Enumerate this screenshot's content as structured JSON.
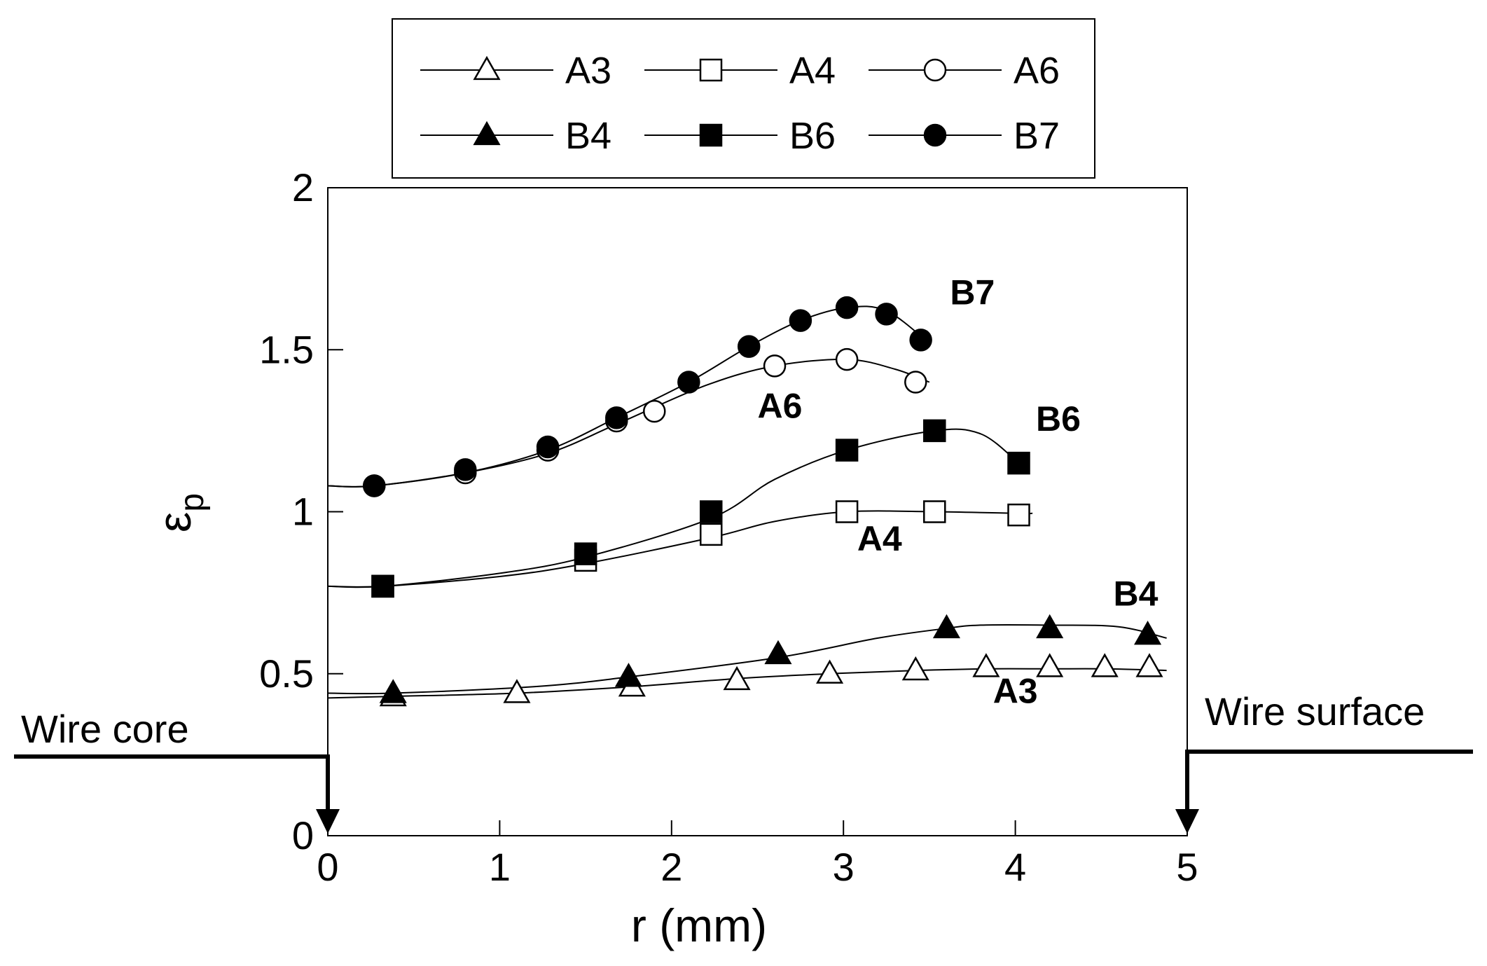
{
  "chart_data": {
    "type": "line",
    "title": "",
    "xlabel": "r (mm)",
    "ylabel_symbol": "ε",
    "ylabel_subscript": "p",
    "xlim": [
      0,
      5
    ],
    "ylim": [
      0,
      2
    ],
    "xticks": [
      0,
      1,
      2,
      3,
      4,
      5
    ],
    "yticks": [
      0,
      0.5,
      1,
      1.5,
      2
    ],
    "ytick_labels": [
      "0",
      "0.5",
      "1",
      "1.5",
      "2"
    ],
    "legend_position": "top",
    "grid": false,
    "series": [
      {
        "name": "A3",
        "marker": "triangle",
        "filled": false,
        "x": [
          0.38,
          1.1,
          1.77,
          2.38,
          2.92,
          3.42,
          3.83,
          4.2,
          4.52,
          4.78
        ],
        "y": [
          0.43,
          0.44,
          0.46,
          0.48,
          0.5,
          0.51,
          0.52,
          0.52,
          0.52,
          0.52
        ],
        "curve_x": [
          0,
          0.38,
          1.1,
          1.77,
          2.38,
          2.92,
          3.42,
          3.83,
          4.2,
          4.52,
          4.88
        ],
        "curve_y": [
          0.425,
          0.43,
          0.44,
          0.46,
          0.485,
          0.5,
          0.51,
          0.515,
          0.515,
          0.515,
          0.51
        ]
      },
      {
        "name": "A4",
        "marker": "square",
        "filled": false,
        "x": [
          0.32,
          1.5,
          2.23,
          3.02,
          3.53,
          4.02
        ],
        "y": [
          0.77,
          0.85,
          0.93,
          1.0,
          1.0,
          0.99
        ],
        "curve_x": [
          0,
          0.32,
          1.0,
          1.5,
          2.23,
          2.6,
          3.02,
          3.53,
          4.02,
          4.1
        ],
        "curve_y": [
          0.77,
          0.77,
          0.8,
          0.84,
          0.92,
          0.97,
          1.0,
          1.0,
          0.995,
          0.995
        ]
      },
      {
        "name": "A6",
        "marker": "circle",
        "filled": false,
        "x": [
          0.27,
          0.8,
          1.28,
          1.68,
          1.9,
          2.6,
          3.02,
          3.42
        ],
        "y": [
          1.08,
          1.12,
          1.19,
          1.28,
          1.31,
          1.45,
          1.47,
          1.4
        ],
        "curve_x": [
          0,
          0.27,
          0.8,
          1.28,
          1.68,
          2.2,
          2.6,
          3.02,
          3.3,
          3.5
        ],
        "curve_y": [
          1.08,
          1.08,
          1.12,
          1.18,
          1.27,
          1.39,
          1.45,
          1.47,
          1.44,
          1.4
        ]
      },
      {
        "name": "B4",
        "marker": "triangle",
        "filled": true,
        "x": [
          0.38,
          1.75,
          2.62,
          3.6,
          4.2,
          4.77
        ],
        "y": [
          0.44,
          0.49,
          0.56,
          0.64,
          0.64,
          0.62
        ],
        "curve_x": [
          0,
          0.38,
          1.2,
          1.75,
          2.62,
          3.2,
          3.6,
          3.8,
          4.2,
          4.6,
          4.88
        ],
        "curve_y": [
          0.44,
          0.44,
          0.46,
          0.49,
          0.55,
          0.61,
          0.64,
          0.65,
          0.65,
          0.645,
          0.61
        ]
      },
      {
        "name": "B6",
        "marker": "square",
        "filled": true,
        "x": [
          0.32,
          1.5,
          2.23,
          3.02,
          3.53,
          4.02
        ],
        "y": [
          0.77,
          0.87,
          1.0,
          1.19,
          1.25,
          1.15
        ],
        "curve_x": [
          0,
          0.32,
          1.0,
          1.5,
          2.23,
          2.6,
          3.02,
          3.53,
          3.8,
          4.02
        ],
        "curve_y": [
          0.77,
          0.77,
          0.81,
          0.86,
          0.98,
          1.1,
          1.19,
          1.25,
          1.24,
          1.15
        ]
      },
      {
        "name": "B7",
        "marker": "circle",
        "filled": true,
        "x": [
          0.27,
          0.8,
          1.28,
          1.68,
          2.1,
          2.45,
          2.75,
          3.02,
          3.25,
          3.45
        ],
        "y": [
          1.08,
          1.13,
          1.2,
          1.29,
          1.4,
          1.51,
          1.59,
          1.63,
          1.61,
          1.53
        ],
        "curve_x": [
          0,
          0.27,
          0.8,
          1.28,
          1.68,
          2.1,
          2.45,
          2.75,
          3.02,
          3.25,
          3.5
        ],
        "curve_y": [
          1.08,
          1.08,
          1.12,
          1.19,
          1.29,
          1.4,
          1.51,
          1.59,
          1.63,
          1.62,
          1.52
        ]
      }
    ],
    "annotations": [
      {
        "text": "B7",
        "x": 3.62,
        "y": 1.64
      },
      {
        "text": "A6",
        "x": 2.5,
        "y": 1.29
      },
      {
        "text": "B6",
        "x": 4.12,
        "y": 1.25
      },
      {
        "text": "A4",
        "x": 3.08,
        "y": 0.88
      },
      {
        "text": "B4",
        "x": 4.57,
        "y": 0.71
      },
      {
        "text": "A3",
        "x": 3.87,
        "y": 0.41
      }
    ],
    "side_labels": {
      "left": "Wire core",
      "right": "Wire surface"
    }
  }
}
